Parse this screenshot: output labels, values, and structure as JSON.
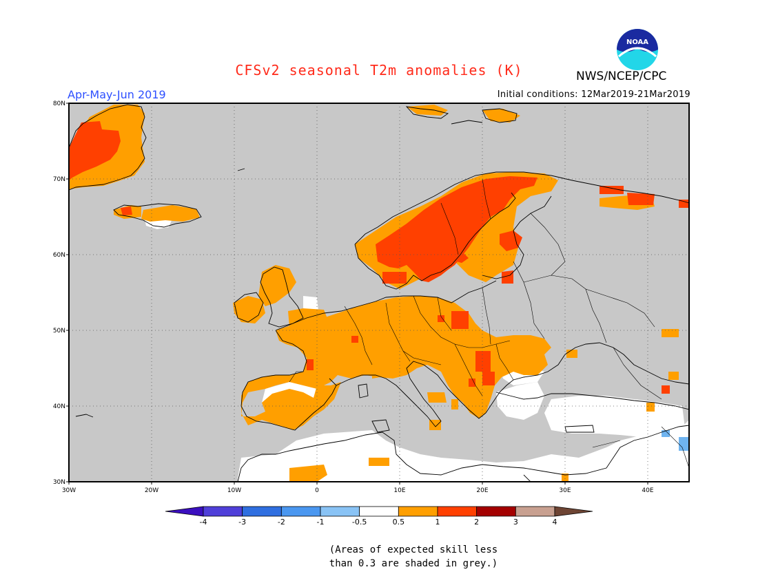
{
  "header": {
    "title": "CFSv2 seasonal T2m anomalies (K)",
    "organization": "NWS/NCEP/CPC",
    "logo_text": "NOAA",
    "period": "Apr-May-Jun 2019",
    "initial_conditions": "Initial conditions: 12Mar2019-21Mar2019"
  },
  "map": {
    "region": "Europe",
    "lon_range": [
      -30,
      45
    ],
    "lat_range": [
      30,
      80
    ],
    "lon_ticks": [
      "30W",
      "20W",
      "10W",
      "0",
      "10E",
      "20E",
      "30E",
      "40E"
    ],
    "lat_ticks": [
      "80N",
      "70N",
      "60N",
      "50N",
      "40N",
      "30N"
    ],
    "grid": "dotted",
    "background_color": "#c8c8c8"
  },
  "legend": {
    "labels": [
      "-4",
      "-3",
      "-2",
      "-1",
      "-0.5",
      "0.5",
      "1",
      "2",
      "3",
      "4"
    ],
    "colors": [
      "#3b0fbf",
      "#4f3fd9",
      "#2f6fe0",
      "#4a97f0",
      "#89c3f5",
      "#ffffff",
      "#ff9f00",
      "#ff4000",
      "#a40000",
      "#c8a090",
      "#6e4534"
    ]
  },
  "footnote": {
    "line1": "(Areas of expected skill less",
    "line2": "than 0.3 are shaded in grey.)"
  }
}
